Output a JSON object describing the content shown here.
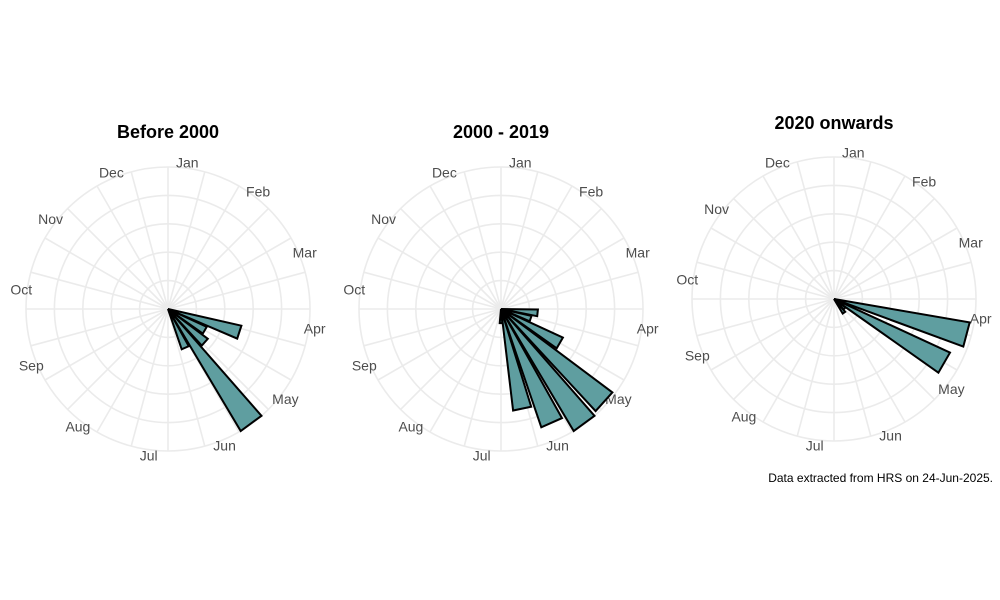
{
  "colors": {
    "bar_fill": "#5f9ea0",
    "bar_outline": "#000000",
    "grid": "#ebebeb",
    "label": "#4d4d4d"
  },
  "caption": "Data extracted from HRS on 24-Jun-2025.",
  "chart_data": [
    {
      "type": "polar-bar",
      "title": "Before 2000",
      "month_labels": [
        "Jan",
        "Feb",
        "Mar",
        "Apr",
        "May",
        "Jun",
        "Jul",
        "Aug",
        "Sep",
        "Oct",
        "Nov",
        "Dec"
      ],
      "grid": true,
      "bins": [
        {
          "angle_deg": 108,
          "value": 0.53
        },
        {
          "angle_deg": 120,
          "value": 0.3
        },
        {
          "angle_deg": 132,
          "value": 0.35
        },
        {
          "angle_deg": 144,
          "value": 1.0
        },
        {
          "angle_deg": 156,
          "value": 0.3
        }
      ]
    },
    {
      "type": "polar-bar",
      "title": "2000 - 2019",
      "month_labels": [
        "Jan",
        "Feb",
        "Mar",
        "Apr",
        "May",
        "Jun",
        "Jul",
        "Aug",
        "Sep",
        "Oct",
        "Nov",
        "Dec"
      ],
      "grid": true,
      "bins": [
        {
          "angle_deg": 96,
          "value": 0.26
        },
        {
          "angle_deg": 108,
          "value": 0.22
        },
        {
          "angle_deg": 120,
          "value": 0.48
        },
        {
          "angle_deg": 132,
          "value": 0.98
        },
        {
          "angle_deg": 144,
          "value": 1.0
        },
        {
          "angle_deg": 156,
          "value": 0.88
        },
        {
          "angle_deg": 168,
          "value": 0.72
        },
        {
          "angle_deg": 180,
          "value": 0.1
        }
      ]
    },
    {
      "type": "polar-bar",
      "title": "2020 onwards",
      "month_labels": [
        "Jan",
        "Feb",
        "Mar",
        "Apr",
        "May",
        "Jun",
        "Jul",
        "Aug",
        "Sep",
        "Oct",
        "Nov",
        "Dec"
      ],
      "grid": true,
      "bins": [
        {
          "angle_deg": 105,
          "value": 0.97
        },
        {
          "angle_deg": 120,
          "value": 0.9
        },
        {
          "angle_deg": 132,
          "value": 0.1
        },
        {
          "angle_deg": 144,
          "value": 0.12
        }
      ]
    }
  ]
}
